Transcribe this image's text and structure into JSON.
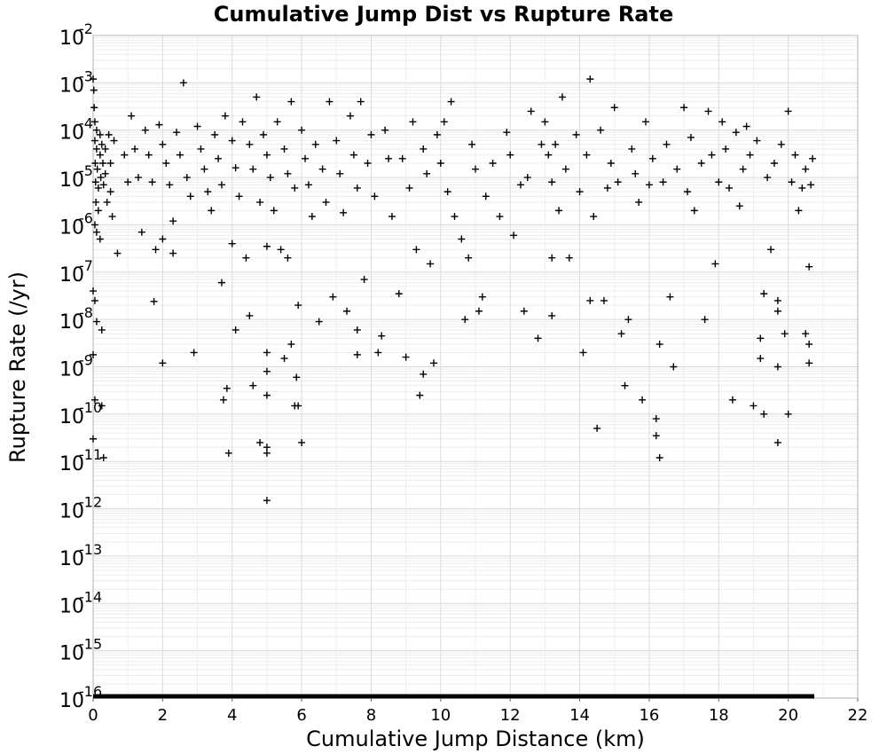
{
  "chart_data": {
    "type": "scatter",
    "title": "Cumulative Jump Dist vs Rupture Rate",
    "xlabel": "Cumulative Jump Distance (km)",
    "ylabel": "Rupture Rate (/yr)",
    "xlim": [
      0,
      22
    ],
    "ylim": [
      1e-16,
      0.01
    ],
    "yscale": "log",
    "grid": true,
    "marker": "+",
    "marker_color": "#000000",
    "x_ticks": [
      "0",
      "2",
      "4",
      "6",
      "8",
      "10",
      "12",
      "14",
      "16",
      "18",
      "20",
      "22"
    ],
    "y_ticks": [
      {
        "base": "10",
        "exp": "-2",
        "value": -2
      },
      {
        "base": "10",
        "exp": "-3",
        "value": -3
      },
      {
        "base": "10",
        "exp": "-4",
        "value": -4
      },
      {
        "base": "10",
        "exp": "-5",
        "value": -5
      },
      {
        "base": "10",
        "exp": "-6",
        "value": -6
      },
      {
        "base": "10",
        "exp": "-7",
        "value": -7
      },
      {
        "base": "10",
        "exp": "-8",
        "value": -8
      },
      {
        "base": "10",
        "exp": "-9",
        "value": -9
      },
      {
        "base": "10",
        "exp": "-10",
        "value": -10
      },
      {
        "base": "10",
        "exp": "-11",
        "value": -11
      },
      {
        "base": "10",
        "exp": "-12",
        "value": -12
      },
      {
        "base": "10",
        "exp": "-13",
        "value": -13
      },
      {
        "base": "10",
        "exp": "-14",
        "value": -14
      },
      {
        "base": "10",
        "exp": "-15",
        "value": -15
      },
      {
        "base": "10",
        "exp": "-16",
        "value": -16
      }
    ],
    "points": [
      [
        0.0,
        0.0012
      ],
      [
        0.02,
        0.0007
      ],
      [
        0.03,
        0.0003
      ],
      [
        0.05,
        0.00015
      ],
      [
        0.05,
        6e-05
      ],
      [
        0.06,
        2e-05
      ],
      [
        0.07,
        8e-06
      ],
      [
        0.08,
        3e-06
      ],
      [
        0.1,
        0.0001
      ],
      [
        0.1,
        4e-05
      ],
      [
        0.12,
        1.5e-05
      ],
      [
        0.15,
        6e-06
      ],
      [
        0.15,
        2e-06
      ],
      [
        0.2,
        8e-05
      ],
      [
        0.2,
        3e-05
      ],
      [
        0.22,
        1e-05
      ],
      [
        0.25,
        5e-05
      ],
      [
        0.28,
        2e-05
      ],
      [
        0.3,
        7e-06
      ],
      [
        0.35,
        4e-05
      ],
      [
        0.35,
        1.2e-05
      ],
      [
        0.4,
        3e-06
      ],
      [
        0.45,
        8e-05
      ],
      [
        0.5,
        2e-05
      ],
      [
        0.5,
        5e-06
      ],
      [
        0.55,
        1.5e-06
      ],
      [
        0.6,
        6e-05
      ],
      [
        0.05,
        1e-06
      ],
      [
        0.1,
        7e-07
      ],
      [
        0.2,
        5e-07
      ],
      [
        0.0,
        4e-08
      ],
      [
        0.05,
        2.5e-08
      ],
      [
        0.1,
        9e-09
      ],
      [
        0.25,
        6e-09
      ],
      [
        0.0,
        1.8e-09
      ],
      [
        0.05,
        2e-10
      ],
      [
        0.25,
        1.5e-10
      ],
      [
        0.0,
        3e-11
      ],
      [
        0.3,
        1.2e-11
      ],
      [
        0.7,
        2.5e-07
      ],
      [
        0.9,
        3e-05
      ],
      [
        1.0,
        8e-06
      ],
      [
        1.1,
        0.0002
      ],
      [
        1.2,
        4e-05
      ],
      [
        1.3,
        1e-05
      ],
      [
        1.4,
        7e-07
      ],
      [
        1.5,
        0.0001
      ],
      [
        1.6,
        3e-05
      ],
      [
        1.7,
        8e-06
      ],
      [
        1.8,
        3e-07
      ],
      [
        1.75,
        2.4e-08
      ],
      [
        1.9,
        0.00013
      ],
      [
        2.0,
        5e-05
      ],
      [
        2.0,
        5e-07
      ],
      [
        2.0,
        1.2e-09
      ],
      [
        2.1,
        2e-05
      ],
      [
        2.2,
        7e-06
      ],
      [
        2.3,
        1.2e-06
      ],
      [
        2.3,
        2.5e-07
      ],
      [
        2.4,
        9e-05
      ],
      [
        2.5,
        3e-05
      ],
      [
        2.6,
        0.001
      ],
      [
        2.7,
        1e-05
      ],
      [
        2.8,
        4e-06
      ],
      [
        2.9,
        2e-09
      ],
      [
        3.0,
        0.00012
      ],
      [
        3.1,
        4e-05
      ],
      [
        3.2,
        1.5e-05
      ],
      [
        3.3,
        5e-06
      ],
      [
        3.4,
        2e-06
      ],
      [
        3.5,
        8e-05
      ],
      [
        3.6,
        2.5e-05
      ],
      [
        3.7,
        7e-06
      ],
      [
        3.7,
        6e-08
      ],
      [
        3.75,
        2e-10
      ],
      [
        3.8,
        0.0002
      ],
      [
        3.85,
        3.5e-10
      ],
      [
        3.9,
        1.5e-11
      ],
      [
        4.0,
        6e-05
      ],
      [
        4.0,
        4e-07
      ],
      [
        4.1,
        1.6e-05
      ],
      [
        4.1,
        6e-09
      ],
      [
        4.2,
        4e-06
      ],
      [
        4.3,
        0.00015
      ],
      [
        4.4,
        2e-07
      ],
      [
        4.5,
        5e-05
      ],
      [
        4.5,
        1.2e-08
      ],
      [
        4.6,
        1.5e-05
      ],
      [
        4.6,
        4e-10
      ],
      [
        4.7,
        0.0005
      ],
      [
        4.8,
        3e-06
      ],
      [
        4.8,
        2.5e-11
      ],
      [
        4.9,
        8e-05
      ],
      [
        5.0,
        3e-05
      ],
      [
        5.0,
        3.5e-07
      ],
      [
        5.0,
        2e-09
      ],
      [
        5.0,
        8e-10
      ],
      [
        5.0,
        2.5e-10
      ],
      [
        5.0,
        2e-11
      ],
      [
        5.0,
        1.5e-11
      ],
      [
        5.0,
        1.5e-12
      ],
      [
        5.1,
        1e-05
      ],
      [
        5.2,
        2e-06
      ],
      [
        5.3,
        0.00015
      ],
      [
        5.4,
        3e-07
      ],
      [
        5.5,
        4e-05
      ],
      [
        5.5,
        1.5e-09
      ],
      [
        5.6,
        1.2e-05
      ],
      [
        5.6,
        2e-07
      ],
      [
        5.7,
        0.0004
      ],
      [
        5.7,
        3e-09
      ],
      [
        5.8,
        6e-06
      ],
      [
        5.8,
        1.5e-10
      ],
      [
        5.85,
        6e-10
      ],
      [
        5.9,
        2e-08
      ],
      [
        5.9,
        1.5e-10
      ],
      [
        6.0,
        0.0001
      ],
      [
        6.0,
        2.5e-11
      ],
      [
        6.1,
        2.5e-05
      ],
      [
        6.2,
        7e-06
      ],
      [
        6.3,
        1.5e-06
      ],
      [
        6.4,
        5e-05
      ],
      [
        6.5,
        9e-09
      ],
      [
        6.6,
        1.5e-05
      ],
      [
        6.7,
        3e-06
      ],
      [
        6.8,
        0.0004
      ],
      [
        6.9,
        3e-08
      ],
      [
        7.0,
        6e-05
      ],
      [
        7.1,
        1.2e-05
      ],
      [
        7.2,
        1.8e-06
      ],
      [
        7.3,
        1.5e-08
      ],
      [
        7.4,
        0.0002
      ],
      [
        7.5,
        3e-05
      ],
      [
        7.6,
        6e-06
      ],
      [
        7.6,
        6e-09
      ],
      [
        7.6,
        1.8e-09
      ],
      [
        7.7,
        0.0004
      ],
      [
        7.8,
        7e-08
      ],
      [
        7.9,
        2e-05
      ],
      [
        8.0,
        8e-05
      ],
      [
        8.1,
        4e-06
      ],
      [
        8.2,
        2e-09
      ],
      [
        8.3,
        4.5e-09
      ],
      [
        8.4,
        0.0001
      ],
      [
        8.5,
        2.5e-05
      ],
      [
        8.6,
        1.5e-06
      ],
      [
        8.8,
        3.5e-08
      ],
      [
        8.9,
        2.5e-05
      ],
      [
        9.0,
        1.6e-09
      ],
      [
        9.1,
        6e-06
      ],
      [
        9.2,
        0.00015
      ],
      [
        9.3,
        3e-07
      ],
      [
        9.4,
        2.5e-10
      ],
      [
        9.5,
        4e-05
      ],
      [
        9.5,
        7e-10
      ],
      [
        9.6,
        1.2e-05
      ],
      [
        9.7,
        1.5e-07
      ],
      [
        9.8,
        1.2e-09
      ],
      [
        9.9,
        8e-05
      ],
      [
        10.0,
        2e-05
      ],
      [
        10.1,
        0.00015
      ],
      [
        10.2,
        5e-06
      ],
      [
        10.3,
        0.0004
      ],
      [
        10.4,
        1.5e-06
      ],
      [
        10.6,
        5e-07
      ],
      [
        10.7,
        1e-08
      ],
      [
        10.8,
        2e-07
      ],
      [
        10.9,
        5e-05
      ],
      [
        11.0,
        1.5e-05
      ],
      [
        11.1,
        1.5e-08
      ],
      [
        11.2,
        3e-08
      ],
      [
        11.3,
        4e-06
      ],
      [
        11.5,
        2e-05
      ],
      [
        11.7,
        1.5e-06
      ],
      [
        11.9,
        9e-05
      ],
      [
        12.0,
        3e-05
      ],
      [
        12.1,
        6e-07
      ],
      [
        12.3,
        7e-06
      ],
      [
        12.4,
        1.5e-08
      ],
      [
        12.5,
        1e-05
      ],
      [
        12.6,
        0.00025
      ],
      [
        12.8,
        4e-09
      ],
      [
        12.9,
        5e-05
      ],
      [
        13.0,
        0.00015
      ],
      [
        13.1,
        3e-05
      ],
      [
        13.2,
        8e-06
      ],
      [
        13.2,
        2e-07
      ],
      [
        13.2,
        1.2e-08
      ],
      [
        13.3,
        5e-05
      ],
      [
        13.4,
        2e-06
      ],
      [
        13.5,
        0.0005
      ],
      [
        13.6,
        1.5e-05
      ],
      [
        13.7,
        2e-07
      ],
      [
        13.9,
        8e-05
      ],
      [
        14.0,
        5e-06
      ],
      [
        14.1,
        2e-09
      ],
      [
        14.2,
        3e-05
      ],
      [
        14.3,
        0.0012
      ],
      [
        14.3,
        2.5e-08
      ],
      [
        14.4,
        1.5e-06
      ],
      [
        14.5,
        5e-11
      ],
      [
        14.6,
        0.0001
      ],
      [
        14.7,
        2.5e-08
      ],
      [
        14.8,
        6e-06
      ],
      [
        14.9,
        2e-05
      ],
      [
        15.0,
        0.0003
      ],
      [
        15.1,
        8e-06
      ],
      [
        15.2,
        5e-09
      ],
      [
        15.3,
        4e-10
      ],
      [
        15.4,
        1e-08
      ],
      [
        15.5,
        4e-05
      ],
      [
        15.6,
        1.2e-05
      ],
      [
        15.7,
        3e-06
      ],
      [
        15.8,
        2e-10
      ],
      [
        15.9,
        0.00015
      ],
      [
        16.0,
        7e-06
      ],
      [
        16.1,
        2.5e-05
      ],
      [
        16.2,
        8e-11
      ],
      [
        16.2,
        3.5e-11
      ],
      [
        16.3,
        1.2e-11
      ],
      [
        16.3,
        3e-09
      ],
      [
        16.4,
        8e-06
      ],
      [
        16.5,
        5e-05
      ],
      [
        16.6,
        3e-08
      ],
      [
        16.7,
        1e-09
      ],
      [
        16.8,
        1.5e-05
      ],
      [
        17.0,
        0.0003
      ],
      [
        17.1,
        5e-06
      ],
      [
        17.2,
        7e-05
      ],
      [
        17.3,
        2e-06
      ],
      [
        17.5,
        2e-05
      ],
      [
        17.6,
        1e-08
      ],
      [
        17.7,
        0.00025
      ],
      [
        17.8,
        3e-05
      ],
      [
        17.9,
        1.5e-07
      ],
      [
        18.0,
        8e-06
      ],
      [
        18.1,
        0.00015
      ],
      [
        18.2,
        4e-05
      ],
      [
        18.3,
        6e-06
      ],
      [
        18.4,
        2e-10
      ],
      [
        18.5,
        9e-05
      ],
      [
        18.6,
        2.5e-06
      ],
      [
        18.7,
        1.5e-05
      ],
      [
        18.8,
        0.00012
      ],
      [
        18.9,
        3e-05
      ],
      [
        19.0,
        1.5e-10
      ],
      [
        19.1,
        6e-05
      ],
      [
        19.2,
        4e-09
      ],
      [
        19.2,
        1.5e-09
      ],
      [
        19.3,
        3.5e-08
      ],
      [
        19.3,
        1e-10
      ],
      [
        19.4,
        1e-05
      ],
      [
        19.5,
        3e-07
      ],
      [
        19.6,
        2e-05
      ],
      [
        19.7,
        2.5e-11
      ],
      [
        19.7,
        1e-09
      ],
      [
        19.7,
        1.5e-08
      ],
      [
        19.7,
        2.5e-08
      ],
      [
        19.8,
        5e-05
      ],
      [
        19.9,
        5e-09
      ],
      [
        20.0,
        0.00025
      ],
      [
        20.0,
        1e-10
      ],
      [
        20.1,
        8e-06
      ],
      [
        20.2,
        3e-05
      ],
      [
        20.3,
        2e-06
      ],
      [
        20.4,
        6e-06
      ],
      [
        20.5,
        5e-09
      ],
      [
        20.5,
        1.5e-05
      ],
      [
        20.6,
        3e-09
      ],
      [
        20.6,
        1.2e-09
      ],
      [
        20.6,
        1.3e-07
      ],
      [
        20.65,
        7e-06
      ],
      [
        20.7,
        2.5e-05
      ]
    ]
  }
}
